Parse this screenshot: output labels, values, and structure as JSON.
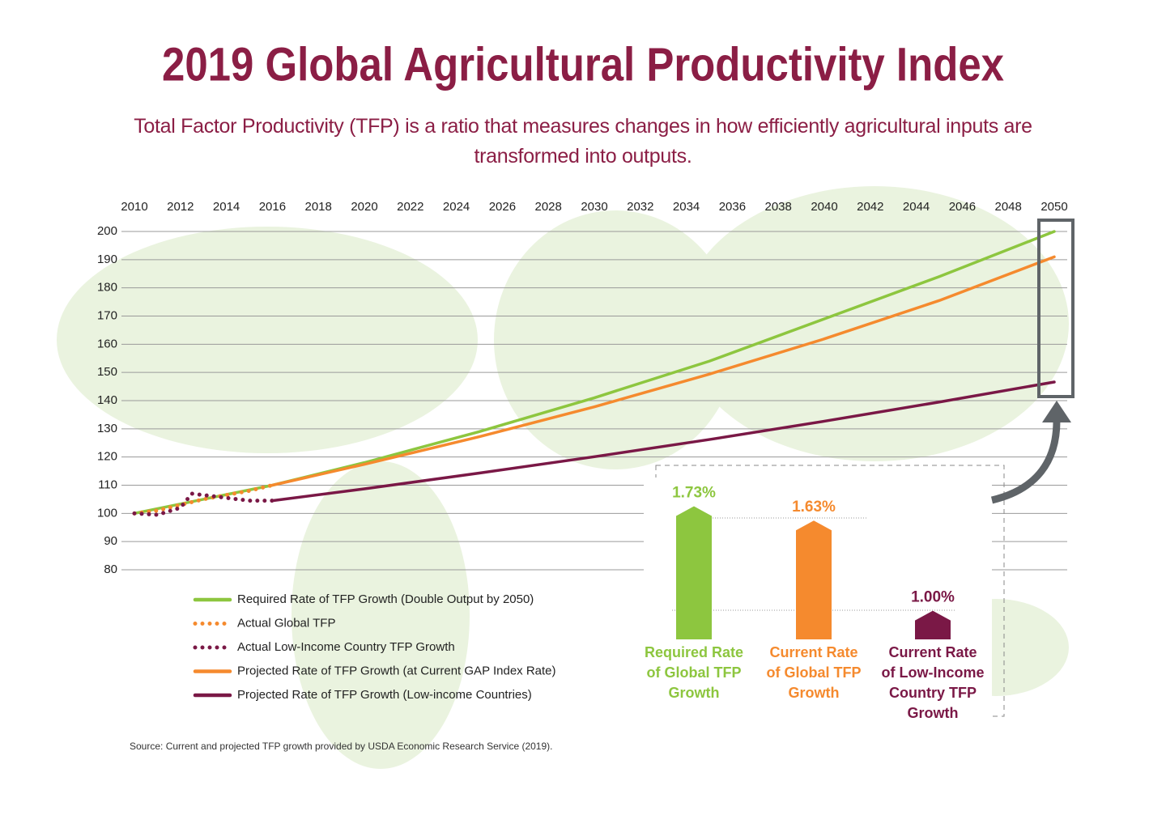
{
  "chart_data": [
    {
      "type": "line",
      "title": "2019 Global Agricultural Productivity Index",
      "subtitle": "Total Factor Productivity (TFP) is a ratio that measures changes in how efficiently agricultural inputs are transformed into outputs.",
      "source": "Source: Current and projected TFP growth provided by USDA Economic Research Service (2019).",
      "xlim": [
        2010,
        2050
      ],
      "xticks": [
        2010,
        2012,
        2014,
        2016,
        2018,
        2020,
        2022,
        2024,
        2026,
        2028,
        2030,
        2032,
        2034,
        2036,
        2038,
        2040,
        2042,
        2044,
        2046,
        2048,
        2050
      ],
      "ylim": [
        80,
        200
      ],
      "yticks": [
        80,
        90,
        100,
        110,
        120,
        130,
        140,
        150,
        160,
        170,
        180,
        190,
        200
      ],
      "grid": true,
      "series": [
        {
          "name": "Required Rate of TFP Growth (Double Output by 2050)",
          "color": "#8dc63f",
          "style": "solid",
          "x": [
            2010,
            2016,
            2020,
            2025,
            2030,
            2035,
            2040,
            2045,
            2050
          ],
          "values": [
            100,
            110,
            118,
            129,
            141,
            154,
            169,
            184,
            200
          ]
        },
        {
          "name": "Actual Global TFP",
          "color": "#f58a2e",
          "style": "dotted",
          "x": [
            2010,
            2011,
            2012,
            2013,
            2014,
            2015,
            2016
          ],
          "values": [
            100,
            101,
            103,
            105,
            106.5,
            108,
            110
          ]
        },
        {
          "name": "Actual Low-Income Country TFP Growth",
          "color": "#7a1846",
          "style": "dotted",
          "x": [
            2010,
            2011,
            2012,
            2012.5,
            2013,
            2014,
            2015,
            2016
          ],
          "values": [
            100,
            99.5,
            102,
            107,
            106.5,
            105.5,
            104.5,
            104.5
          ]
        },
        {
          "name": "Projected Rate of TFP Growth (at Current GAP Index Rate)",
          "color": "#f58a2e",
          "style": "solid",
          "x": [
            2016,
            2020,
            2025,
            2030,
            2035,
            2040,
            2045,
            2050
          ],
          "values": [
            110,
            117.4,
            127.2,
            137.8,
            149.4,
            161.9,
            175.5,
            191
          ]
        },
        {
          "name": "Projected Rate of TFP Growth (Low-income Countries)",
          "color": "#7a1846",
          "style": "solid",
          "x": [
            2016,
            2020,
            2025,
            2030,
            2035,
            2040,
            2045,
            2050
          ],
          "values": [
            104.5,
            108.7,
            114.3,
            120.1,
            126.2,
            132.7,
            139.5,
            146.6
          ]
        }
      ]
    },
    {
      "type": "bar",
      "categories": [
        "Required Rate of Global TFP Growth",
        "Current Rate of Global TFP Growth",
        "Current Rate of Low-Income Country TFP Growth"
      ],
      "values": [
        1.73,
        1.63,
        1.0
      ],
      "value_labels": [
        "1.73%",
        "1.63%",
        "1.00%"
      ],
      "colors": [
        "#8dc63f",
        "#f58a2e",
        "#7a1846"
      ],
      "ylim": [
        0.8,
        1.75
      ]
    }
  ]
}
